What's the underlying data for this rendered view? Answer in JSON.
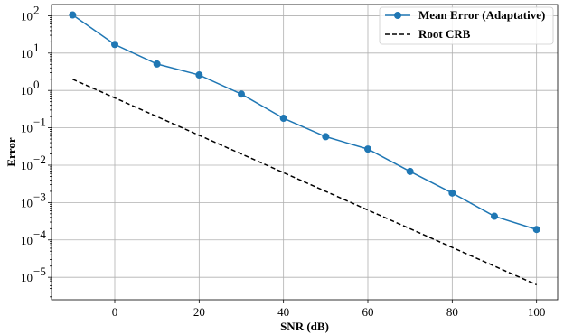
{
  "chart_data": {
    "type": "line",
    "xlabel": "SNR (dB)",
    "ylabel": "Error",
    "xlim": [
      -15,
      105
    ],
    "ylim_log10": [
      -5.6,
      2.3
    ],
    "yscale": "log",
    "grid": true,
    "legend_position": "top-right",
    "x_ticks": [
      0,
      20,
      40,
      60,
      80,
      100
    ],
    "y_ticks_exponents": [
      -5,
      -4,
      -3,
      -2,
      -1,
      0,
      1,
      2
    ],
    "y_tick_base": "10",
    "series": [
      {
        "name": "Mean Error (Adaptative)",
        "style": "solid-marker",
        "color": "#1f77b4",
        "x": [
          -10,
          0,
          10,
          20,
          30,
          40,
          50,
          60,
          70,
          80,
          90,
          100
        ],
        "y": [
          105,
          17,
          5.1,
          2.6,
          0.8,
          0.18,
          0.058,
          0.027,
          0.0068,
          0.0018,
          0.00043,
          0.00019
        ]
      },
      {
        "name": "Root CRB",
        "style": "dashed",
        "color": "#000000",
        "x": [
          -10,
          100
        ],
        "y": [
          2.0,
          6.3e-06
        ]
      }
    ]
  }
}
